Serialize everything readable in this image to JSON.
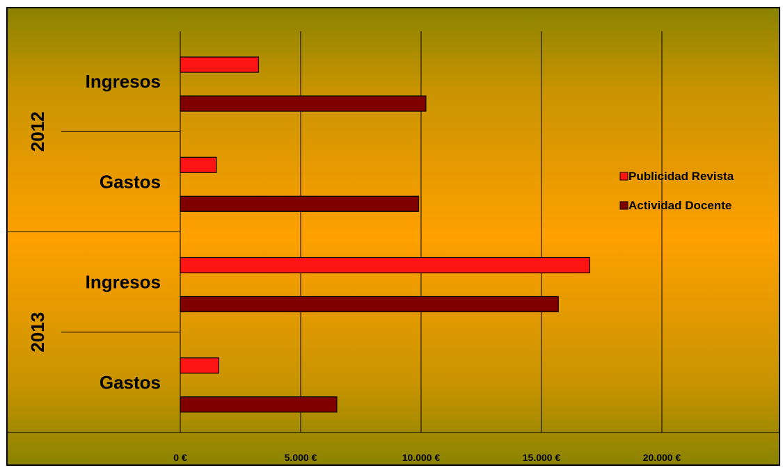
{
  "chart_data": {
    "type": "bar",
    "orientation": "horizontal",
    "title": "",
    "xlabel": "",
    "ylabel": "",
    "xlim": [
      0,
      20000
    ],
    "x_ticks": [
      0,
      5000,
      10000,
      15000,
      20000
    ],
    "x_tick_labels": [
      "0 €",
      "5.000 €",
      "10.000 €",
      "15.000 €",
      "20.000 €"
    ],
    "grid": "vertical",
    "legend_position": "right",
    "groups": [
      {
        "year": "2012",
        "categories": [
          "Ingresos",
          "Gastos"
        ]
      },
      {
        "year": "2013",
        "categories": [
          "Ingresos",
          "Gastos"
        ]
      }
    ],
    "categories": [
      "2012 Ingresos",
      "2012 Gastos",
      "2013 Ingresos",
      "2013 Gastos"
    ],
    "series": [
      {
        "name": "Publicidad Revista",
        "color": "#ff1414",
        "values": [
          3250,
          1500,
          17000,
          1600
        ]
      },
      {
        "name": "Actividad Docente",
        "color": "#800000",
        "values": [
          10200,
          9900,
          15700,
          6500
        ]
      }
    ]
  }
}
